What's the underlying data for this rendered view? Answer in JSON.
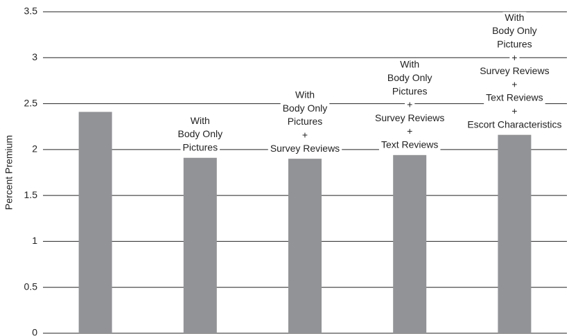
{
  "chart_data": {
    "type": "bar",
    "ylabel": "Percent Premium",
    "values": [
      2.41,
      1.91,
      1.9,
      1.94,
      2.16
    ],
    "labels": [
      null,
      [
        "With",
        "Body Only",
        "Pictures"
      ],
      [
        "With",
        "Body Only",
        "Pictures",
        "+",
        "Survey Reviews"
      ],
      [
        "With",
        "Body Only",
        "Pictures",
        "+",
        "Survey Reviews",
        "+",
        "Text Reviews"
      ],
      [
        "With",
        "Body Only",
        "Pictures",
        "+",
        "Survey Reviews",
        "+",
        "Text Reviews",
        "+",
        "Escort Characteristics"
      ]
    ],
    "color": "#929396",
    "ylim": [
      0,
      3.5
    ],
    "yticks": [
      0,
      0.5,
      1,
      1.5,
      2,
      2.5,
      3,
      3.5
    ],
    "grid": true
  }
}
